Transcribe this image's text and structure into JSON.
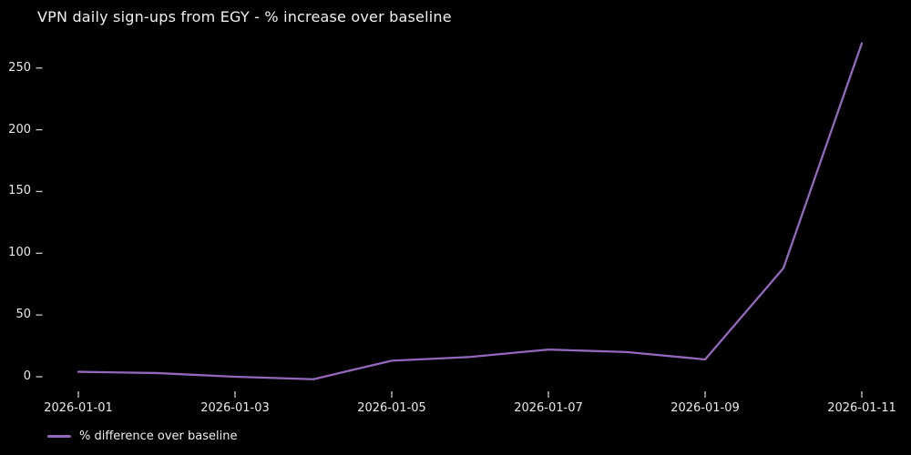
{
  "title": "VPN daily sign-ups from EGY - % increase over baseline",
  "legend": {
    "label": "% difference over baseline"
  },
  "colors": {
    "background": "#000000",
    "text": "#e9e9e9",
    "line": "#9467bd",
    "tick": "#c9c9c9"
  },
  "chart_data": {
    "type": "line",
    "title": "VPN daily sign-ups from EGY - % increase over baseline",
    "xlabel": "",
    "ylabel": "",
    "x": [
      "2026-01-01",
      "2026-01-02",
      "2026-01-03",
      "2026-01-04",
      "2026-01-05",
      "2026-01-06",
      "2026-01-07",
      "2026-01-08",
      "2026-01-09",
      "2026-01-10",
      "2026-01-11"
    ],
    "series": [
      {
        "name": "% difference over baseline",
        "values": [
          4,
          3,
          0,
          -2,
          13,
          16,
          22,
          20,
          14,
          88,
          270
        ]
      }
    ],
    "yticks": [
      0,
      50,
      100,
      150,
      200,
      250
    ],
    "xtick_labels": [
      "2026-01-01",
      "2026-01-03",
      "2026-01-05",
      "2026-01-07",
      "2026-01-09",
      "2026-01-11"
    ],
    "ylim": [
      -16,
      284
    ],
    "grid": false,
    "legend_position": "lower-left-below-axis",
    "line_color": "#9467bd"
  }
}
